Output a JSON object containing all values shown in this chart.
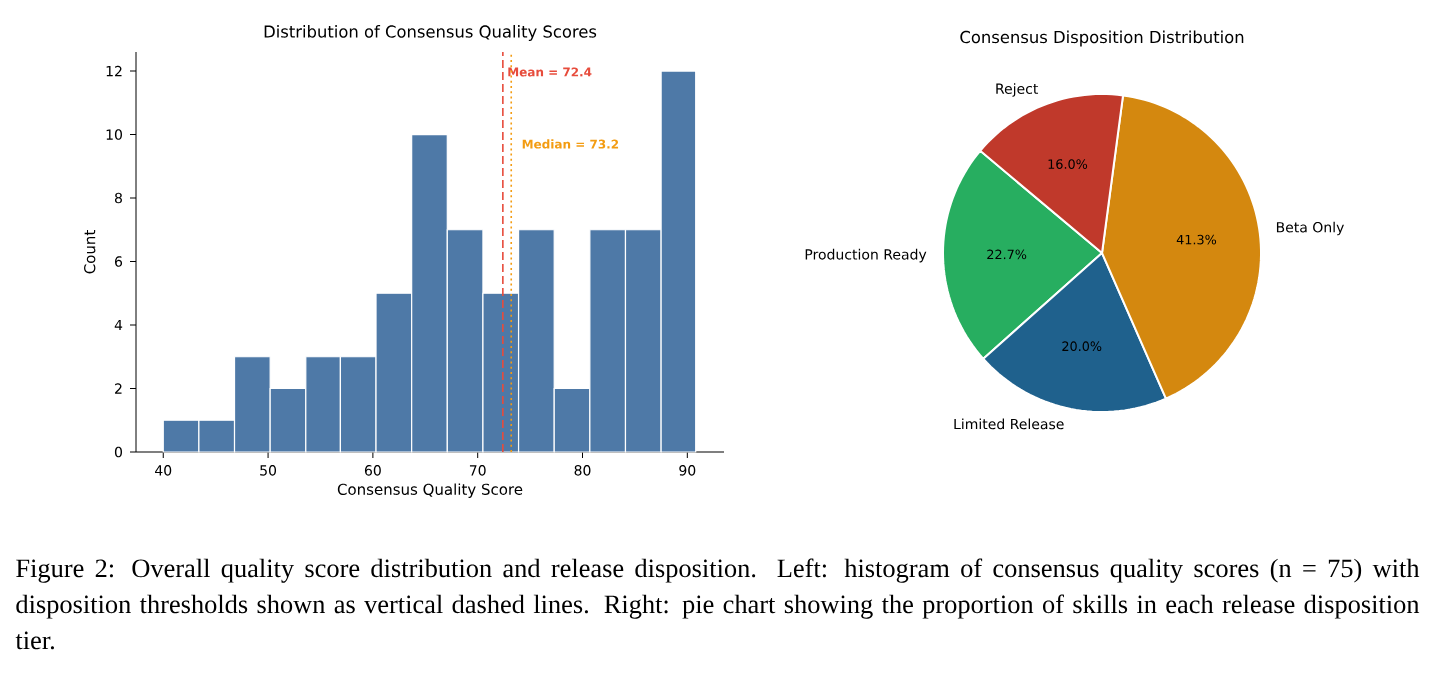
{
  "chart_data": [
    {
      "type": "histogram",
      "title": "Distribution of Consensus Quality Scores",
      "xlabel": "Consensus Quality Score",
      "ylabel": "Count",
      "bins": [
        40.0,
        43.4,
        46.8,
        50.2,
        53.6,
        56.9,
        60.3,
        63.7,
        67.1,
        70.5,
        73.9,
        77.3,
        80.7,
        84.1,
        87.5,
        90.8
      ],
      "values": [
        1,
        1,
        3,
        2,
        3,
        3,
        5,
        10,
        7,
        5,
        7,
        2,
        7,
        7,
        12
      ],
      "color": "#4e79a7",
      "xlim": [
        37.4,
        93.5
      ],
      "ylim": [
        0,
        12.6
      ],
      "xticks": [
        40,
        50,
        60,
        70,
        80,
        90
      ],
      "yticks": [
        0,
        2,
        4,
        6,
        8,
        10,
        12
      ],
      "ref_lines": [
        {
          "axis": "x",
          "value": 72.4,
          "label": "Mean = 72.4",
          "color": "#e74c3c",
          "line_style": "dashed"
        },
        {
          "axis": "x",
          "value": 73.2,
          "label": "Median = 73.2",
          "color": "#f39c12",
          "line_style": "dotted"
        }
      ],
      "annotations": [
        "Figure 2: Overall quality score distribution and release disposition. Left: histogram of consensus quality scores (n = 75) with disposition thresholds shown as vertical dashed lines. Right: pie chart showing the proportion of skills in each release disposition tier."
      ]
    },
    {
      "type": "pie",
      "title": "Consensus Disposition Distribution",
      "categories": [
        "Production Ready",
        "Limited Release",
        "Beta Only",
        "Reject"
      ],
      "values": [
        22.7,
        20.0,
        41.3,
        16.0
      ],
      "colors": [
        "#27ae60",
        "#1f618d",
        "#d4880f",
        "#c0392b"
      ],
      "value_labels": [
        "22.7%",
        "20.0%",
        "41.3%",
        "16.0%"
      ]
    }
  ]
}
